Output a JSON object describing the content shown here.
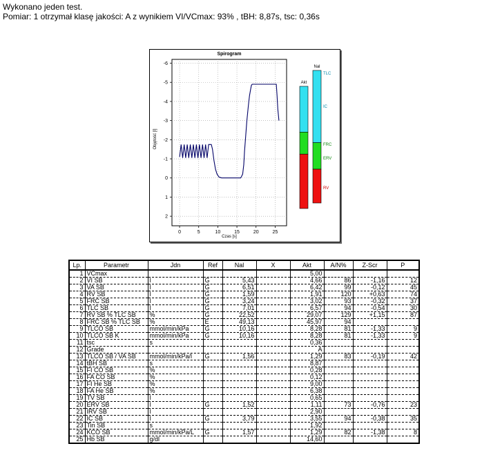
{
  "header": {
    "line1": "Wykonano jeden test.",
    "line2": "Pomiar: 1 otrzymał klasę jakości: A z wynikiem VI/VCmax: 93% , tBH: 8,87s, tsc: 0,36s"
  },
  "chart_data": {
    "type": "line",
    "title": "Spirogram",
    "xlabel": "Czas [s]",
    "ylabel": "Objętość [l]",
    "x_ticks": [
      "0",
      "5",
      "10",
      "15",
      "20",
      "25"
    ],
    "y_ticks": [
      "-6",
      "-5",
      "-4",
      "-3",
      "-2",
      "-1",
      "0",
      "1",
      "2"
    ],
    "xlim": [
      -2,
      28
    ],
    "ylim": [
      2.5,
      -6.2
    ],
    "grid": true,
    "series": [
      {
        "x": [
          0,
          0.4,
          0.8,
          1.2,
          1.6,
          2.0,
          2.4,
          2.8,
          3.2,
          3.6,
          4.0,
          4.4,
          4.8,
          5.2,
          5.6,
          6.0,
          6.4,
          6.8,
          7.2,
          7.6,
          8.0,
          8.3,
          8.6,
          9.0,
          9.4,
          9.8,
          10.3,
          11,
          12,
          13,
          14,
          15,
          16,
          16.5,
          16.8,
          17.0,
          17.3,
          17.6,
          18.0,
          18.3,
          18.6,
          18.8,
          19.0,
          19.5,
          20,
          22,
          24,
          25.3,
          25.5,
          25.7,
          26.0
        ],
        "y": [
          -1.1,
          -1.75,
          -1.05,
          -1.75,
          -1.05,
          -1.75,
          -1.05,
          -1.75,
          -1.05,
          -1.75,
          -1.05,
          -1.75,
          -1.05,
          -1.75,
          -1.05,
          -1.75,
          -1.05,
          -1.75,
          -1.05,
          -1.75,
          -1.75,
          -1.75,
          -1.5,
          -0.9,
          -0.45,
          -0.2,
          -0.05,
          0.0,
          0.0,
          0.0,
          0.0,
          0.0,
          0.0,
          -0.2,
          -0.7,
          -1.4,
          -2.2,
          -3.0,
          -3.8,
          -4.3,
          -4.65,
          -4.85,
          -4.9,
          -4.9,
          -4.9,
          -4.9,
          -4.9,
          -4.9,
          -4.3,
          -3.6,
          -3.0
        ]
      }
    ],
    "bars": [
      {
        "name": "Akt",
        "segments": [
          {
            "label": "IC",
            "from": 0.0,
            "to": 0.375,
            "color": "#33e0f0"
          },
          {
            "label": "ERV",
            "from": 0.375,
            "to": 0.555,
            "color": "#22dd22"
          },
          {
            "label": "RV",
            "from": 0.555,
            "to": 1.0,
            "color": "#ee1111"
          }
        ]
      },
      {
        "name": "Nal",
        "segments": [
          {
            "label": "IC",
            "from": 0.0,
            "to": 0.545,
            "color": "#33e0f0"
          },
          {
            "label": "ERV",
            "from": 0.545,
            "to": 0.745,
            "color": "#22dd22"
          },
          {
            "label": "RV",
            "from": 0.745,
            "to": 1.0,
            "color": "#ee1111"
          }
        ]
      }
    ],
    "side_labels": [
      "TLC",
      "IC",
      "FRC",
      "ERV",
      "RV"
    ],
    "series_color": "#000066",
    "axis_color": "#000000"
  },
  "table": {
    "headers": [
      "Lp.",
      "Parametr",
      "Jdn",
      "Ref",
      "Nal",
      "X",
      "Akt",
      "A/N%",
      "Z-Scr",
      "P"
    ],
    "rows": [
      [
        "1",
        "VCmax",
        "",
        "",
        "",
        "",
        "5,00",
        "",
        "",
        ""
      ],
      [
        "2",
        "VI SB",
        "l",
        "G",
        "5,43",
        "",
        "4,66",
        "86",
        "-1,16",
        "12"
      ],
      [
        "3",
        "VA SB",
        "l",
        "G",
        "6,51",
        "",
        "6,42",
        "99",
        "-0,12",
        "45"
      ],
      [
        "4",
        "RV SB",
        "l",
        "G",
        "1,59",
        "",
        "1,91",
        "120",
        "+0,63",
        "74"
      ],
      [
        "5",
        "FRC SB",
        "l",
        "G",
        "3,24",
        "",
        "3,02",
        "93",
        "-0,32",
        "37"
      ],
      [
        "6",
        "TLC SB",
        "l",
        "G",
        "7,01",
        "",
        "6,57",
        "94",
        "-0,54",
        "30"
      ],
      [
        "7",
        "RV SB % TLC SB",
        "%",
        "G",
        "22,52",
        "",
        "29,07",
        "129",
        "+1,15",
        "87"
      ],
      [
        "8",
        "FRC SB % TLC SB",
        "%",
        "E",
        "49,13",
        "",
        "45,97",
        "94",
        "",
        ""
      ],
      [
        "9",
        "TLCO SB",
        "mmol/min/kPa",
        "G",
        "10,16",
        "",
        "8,28",
        "81",
        "-1,33",
        "9"
      ],
      [
        "10",
        "TLCO SB K",
        "mmol/min/kPa",
        "G",
        "10,16",
        "",
        "8,28",
        "81",
        "-1,33",
        "9"
      ],
      [
        "11",
        "tsc",
        "s",
        "",
        "",
        "",
        "0,36",
        "",
        "",
        ""
      ],
      [
        "12",
        "Grade",
        "",
        "",
        "",
        "",
        "A",
        "",
        "",
        ""
      ],
      [
        "13",
        "TLCO SB / VA SB",
        "mmol/min/kPa/l",
        "G",
        "1,56",
        "",
        "1,29",
        "83",
        "-0,19",
        "42"
      ],
      [
        "14",
        "tBH SB",
        "s",
        "",
        "",
        "",
        "8,87",
        "",
        "",
        ""
      ],
      [
        "15",
        "FI CO SB",
        "%",
        "",
        "",
        "",
        "0,28",
        "",
        "",
        ""
      ],
      [
        "16",
        "FA CO SB",
        "%",
        "",
        "",
        "",
        "0,12",
        "",
        "",
        ""
      ],
      [
        "17",
        "FI He SB",
        "%",
        "",
        "",
        "",
        "9,00",
        "",
        "",
        ""
      ],
      [
        "18",
        "FA He SB",
        "%",
        "",
        "",
        "",
        "6,38",
        "",
        "",
        ""
      ],
      [
        "19",
        "TV SB",
        "l",
        "",
        "",
        "",
        "0,65",
        "",
        "",
        ""
      ],
      [
        "20",
        "ERV SB",
        "l",
        "G",
        "1,52",
        "",
        "1,11",
        "73",
        "-0,76",
        "23"
      ],
      [
        "21",
        "IRV SB",
        "l",
        "",
        "",
        "",
        "2,90",
        "",
        "",
        ""
      ],
      [
        "22",
        "IC SB",
        "l",
        "G",
        "3,79",
        "",
        "3,55",
        "94",
        "-0,38",
        "35"
      ],
      [
        "23",
        "Tin SB",
        "s",
        "",
        "",
        "",
        "1,92",
        "",
        "",
        ""
      ],
      [
        "24",
        "KCO SB",
        "mmol/min/kPa/L",
        "G",
        "1,57",
        "",
        "1,29",
        "82",
        "-1,38",
        "8"
      ],
      [
        "25",
        "Hb SB",
        "g/dl",
        "",
        "",
        "",
        "14,60",
        "",
        "",
        ""
      ]
    ]
  }
}
